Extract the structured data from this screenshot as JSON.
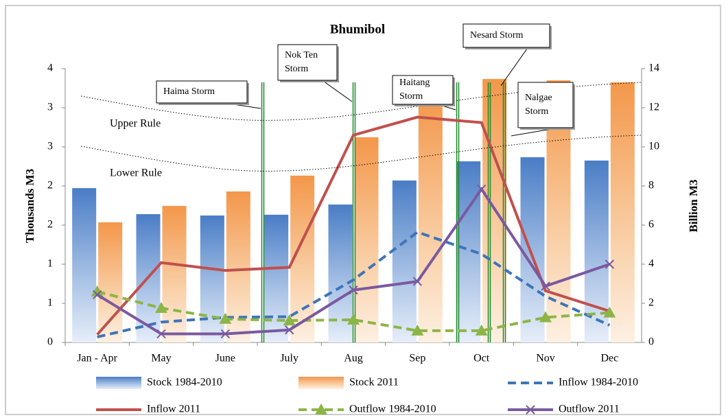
{
  "chart_data": {
    "type": "combo",
    "title": "Bhumibol",
    "y_label": "Thousands M3",
    "y2_label": "Billion M3",
    "categories": [
      "Jan - Apr",
      "May",
      "June",
      "July",
      "Aug",
      "Sep",
      "Oct",
      "Nov",
      "Dec"
    ],
    "ylim": [
      0,
      3.5
    ],
    "yticks": [
      0,
      {
        "value": 0.5,
        "label": "1"
      },
      1,
      {
        "value": 1.5,
        "label": "2"
      },
      2,
      {
        "value": 2.5,
        "label": "3"
      },
      3,
      {
        "value": 3.5,
        "label": "4"
      }
    ],
    "y2lim": [
      0,
      14
    ],
    "y2ticks": [
      0,
      2,
      4,
      6,
      8,
      10,
      12,
      14
    ],
    "series": [
      {
        "name": "Stock 1984-2010",
        "type": "bar",
        "axis": "y2",
        "color": "#4a7dc6",
        "values": [
          7.89,
          6.56,
          6.49,
          6.53,
          7.05,
          8.28,
          9.26,
          9.47,
          9.3
        ]
      },
      {
        "name": "Stock 2011",
        "type": "bar",
        "axis": "y2",
        "color": "#f3974a",
        "values": [
          6.14,
          6.98,
          7.72,
          8.53,
          10.49,
          12.56,
          13.47,
          13.4,
          13.3
        ]
      },
      {
        "name": "Inflow 1984-2010",
        "type": "line",
        "style": "dashed",
        "color": "#3f74b8",
        "values": [
          0.07,
          0.26,
          0.32,
          0.33,
          0.8,
          1.41,
          1.13,
          0.59,
          0.22
        ]
      },
      {
        "name": "Inflow 2011",
        "type": "line",
        "style": "solid",
        "color": "#c0504d",
        "values": [
          0.1,
          1.02,
          0.92,
          0.96,
          2.65,
          2.88,
          2.81,
          0.66,
          0.4
        ]
      },
      {
        "name": "Outflow 1984-2010",
        "type": "line",
        "style": "dashed",
        "marker": "triangle",
        "color": "#8cb547",
        "values": [
          0.65,
          0.44,
          0.3,
          0.28,
          0.29,
          0.15,
          0.15,
          0.32,
          0.38
        ]
      },
      {
        "name": "Outflow 2011",
        "type": "line",
        "style": "solid",
        "marker": "x",
        "color": "#7a59a0",
        "values": [
          0.61,
          0.11,
          0.11,
          0.16,
          0.67,
          0.78,
          1.96,
          0.72,
          1.0
        ]
      }
    ],
    "rule_labels": [
      "Upper Rule",
      "Lower Rule"
    ],
    "storms": [
      [
        "Haima Storm"
      ],
      [
        "Nok Ten",
        "Storm"
      ],
      [
        "Haitang",
        "Storm"
      ],
      [
        "Nesard Storm"
      ],
      [
        "Nalgae",
        "Storm"
      ]
    ]
  }
}
